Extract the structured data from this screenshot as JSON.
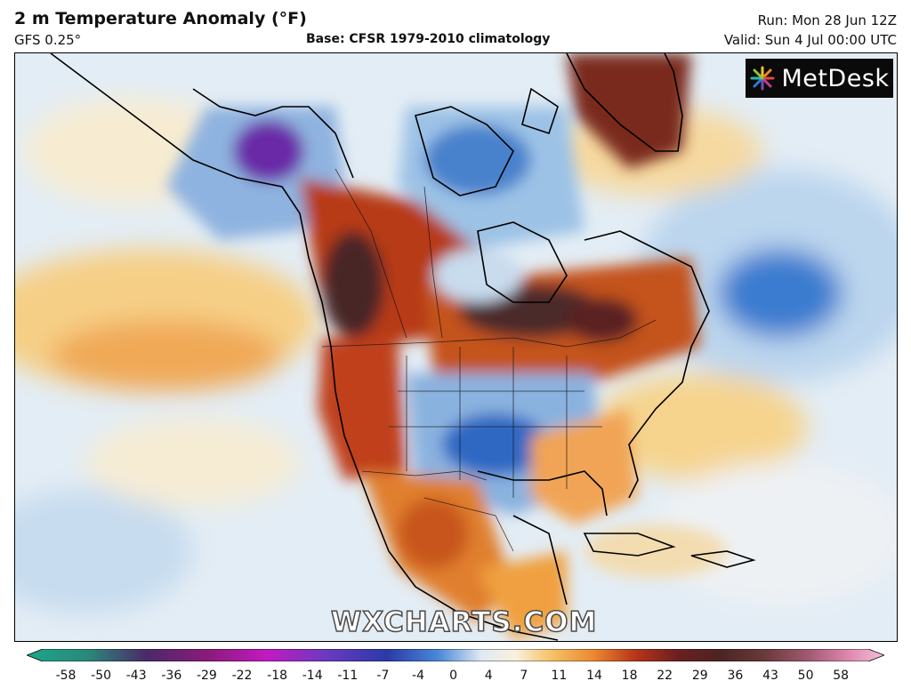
{
  "header": {
    "title": "2 m Temperature Anomaly (°F)",
    "model": "GFS 0.25°",
    "base": "Base: CFSR 1979-2010 climatology",
    "run": "Run: Mon 28 Jun 12Z",
    "valid": "Valid: Sun 4 Jul 00:00 UTC"
  },
  "logo": {
    "text": "MetDesk"
  },
  "watermark": "WXCHARTS.COM",
  "legend": {
    "ticks": [
      "-58",
      "-50",
      "-43",
      "-36",
      "-29",
      "-22",
      "-18",
      "-14",
      "-11",
      "-7",
      "-4",
      "0",
      "4",
      "7",
      "11",
      "14",
      "18",
      "22",
      "29",
      "36",
      "43",
      "50",
      "58"
    ]
  },
  "colors": {
    "cold_extreme": "#1aa68a",
    "very_cold": "#7a1a9a",
    "cold": "#2a62c0",
    "cool": "#a8cbe8",
    "neutral": "#f3f3f3",
    "warm": "#f5c46a",
    "hot": "#b8341a",
    "very_hot": "#4d2424",
    "hot_extreme": "#f2a6c8"
  }
}
